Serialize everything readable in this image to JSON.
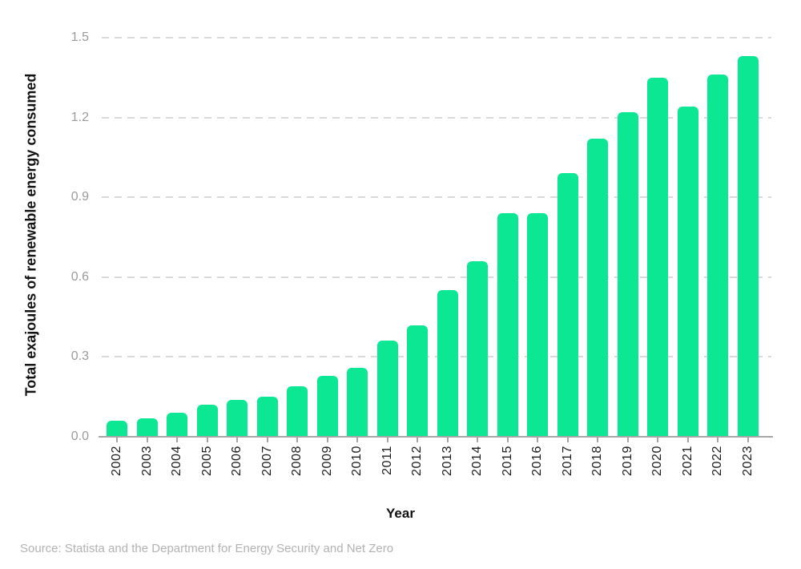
{
  "chart_data": {
    "type": "bar",
    "xlabel": "Year",
    "ylabel": "Total exajoules of renewable energy consumed",
    "categories": [
      "2002",
      "2003",
      "2004",
      "2005",
      "2006",
      "2007",
      "2008",
      "2009",
      "2010",
      "2011",
      "2012",
      "2013",
      "2014",
      "2015",
      "2016",
      "2017",
      "2018",
      "2019",
      "2020",
      "2021",
      "2022",
      "2023"
    ],
    "values": [
      0.06,
      0.07,
      0.09,
      0.12,
      0.14,
      0.15,
      0.19,
      0.23,
      0.26,
      0.36,
      0.42,
      0.55,
      0.66,
      0.84,
      0.84,
      0.99,
      1.12,
      1.22,
      1.35,
      1.24,
      1.36,
      1.43
    ],
    "ylim": [
      0,
      1.5
    ],
    "yticks": [
      0.0,
      0.3,
      0.6,
      0.9,
      1.2,
      1.5
    ],
    "grid": "horizontal-dashed",
    "legend": "none",
    "colors": {
      "bar": "#0ce794",
      "axis": "#a6a6a6",
      "gridline": "#d9d9d9",
      "y_tick_label": "#9b9b9b",
      "x_tick_label": "#1c1c1c",
      "axis_title": "#111111",
      "source_text": "#b2b2b2"
    },
    "source": "Source: Statista and the Department for Energy Security and Net Zero"
  }
}
